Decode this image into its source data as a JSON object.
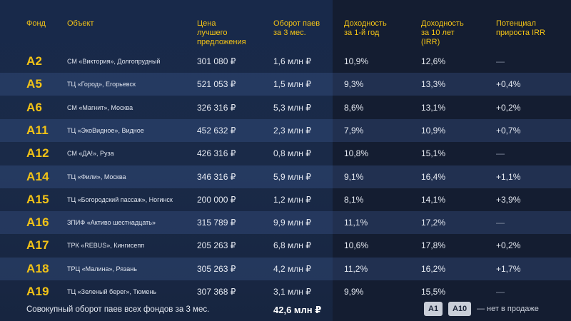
{
  "header": {
    "fund": "Фонд",
    "object": "Объект",
    "price": [
      "Цена",
      "лучшего",
      "предложения"
    ],
    "turnover": [
      "Оборот паев",
      "за 3 мес."
    ],
    "yield1": [
      "Доходность",
      "за 1-й год"
    ],
    "yield10": [
      "Доходность",
      "за 10 лет",
      "(IRR)"
    ],
    "potential": [
      "Потенциал",
      "прироста IRR"
    ]
  },
  "rows": [
    {
      "fund": "A2",
      "object": "СМ «Виктория», Долгопрудный",
      "price": "301 080 ₽",
      "turnover": "1,6 млн ₽",
      "yield1": "10,9%",
      "yield10": "12,6%",
      "potential": "—"
    },
    {
      "fund": "A5",
      "object": "ТЦ «Город», Егорьевск",
      "price": "521 053 ₽",
      "turnover": "1,5 млн ₽",
      "yield1": "9,3%",
      "yield10": "13,3%",
      "potential": "+0,4%"
    },
    {
      "fund": "A6",
      "object": "СМ «Магнит», Москва",
      "price": "326 316 ₽",
      "turnover": "5,3 млн ₽",
      "yield1": "8,6%",
      "yield10": "13,1%",
      "potential": "+0,2%"
    },
    {
      "fund": "A11",
      "object": "ТЦ «ЭкоВидное», Видное",
      "price": "452 632 ₽",
      "turnover": "2,3 млн ₽",
      "yield1": "7,9%",
      "yield10": "10,9%",
      "potential": "+0,7%"
    },
    {
      "fund": "A12",
      "object": "СМ «ДА!», Руза",
      "price": "426 316 ₽",
      "turnover": "0,8 млн ₽",
      "yield1": "10,8%",
      "yield10": "15,1%",
      "potential": "—"
    },
    {
      "fund": "A14",
      "object": "ТЦ «Фили», Москва",
      "price": "346 316 ₽",
      "turnover": "5,9 млн ₽",
      "yield1": "9,1%",
      "yield10": "16,4%",
      "potential": "+1,1%"
    },
    {
      "fund": "A15",
      "object": "ТЦ «Богородский пассаж», Ногинск",
      "price": "200 000 ₽",
      "turnover": "1,2 млн ₽",
      "yield1": "8,1%",
      "yield10": "14,1%",
      "potential": "+3,9%"
    },
    {
      "fund": "A16",
      "object": "ЗПИФ «Активо шестнадцать»",
      "price": "315 789 ₽",
      "turnover": "9,9 млн ₽",
      "yield1": "11,1%",
      "yield10": "17,2%",
      "potential": "—"
    },
    {
      "fund": "A17",
      "object": "ТРК «REBUS», Кингисепп",
      "price": "205 263 ₽",
      "turnover": "6,8 млн ₽",
      "yield1": "10,6%",
      "yield10": "17,8%",
      "potential": "+0,2%"
    },
    {
      "fund": "A18",
      "object": "ТРЦ «Малина», Рязань",
      "price": "305 263 ₽",
      "turnover": "4,2 млн ₽",
      "yield1": "11,2%",
      "yield10": "16,2%",
      "potential": "+1,7%"
    },
    {
      "fund": "A19",
      "object": "ТЦ «Зеленый берег», Тюмень",
      "price": "307 368 ₽",
      "turnover": "3,1 млн ₽",
      "yield1": "9,9%",
      "yield10": "15,5%",
      "potential": "—"
    }
  ],
  "footer": {
    "total_label": "Совокупный оборот паев всех фондов за 3 мес.",
    "total_value": "42,6 млн ₽",
    "badges": [
      "A1",
      "A10"
    ],
    "legend": "— нет в продаже"
  },
  "colors": {
    "accent": "#f3c316",
    "background": "#15213a",
    "row_alt": "#2a3c60"
  }
}
